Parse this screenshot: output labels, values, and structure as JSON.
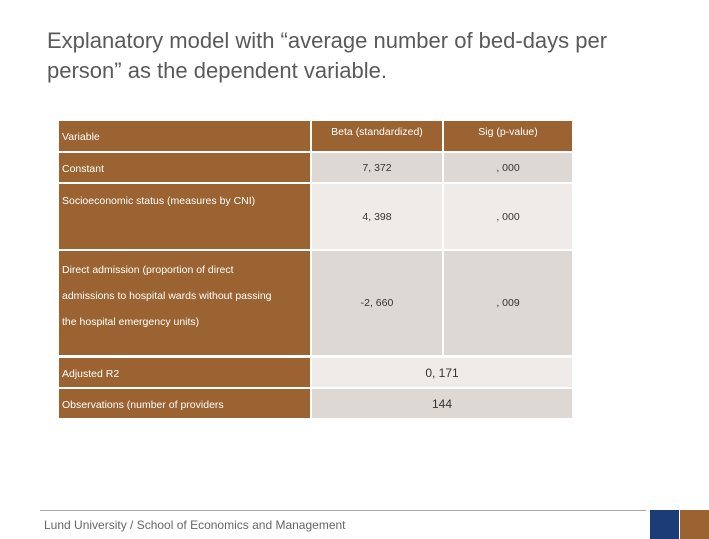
{
  "title": "Explanatory model with “average number of bed-days per person” as the dependent variable.",
  "table": {
    "headers": {
      "variable": "Variable",
      "beta": "Beta (standardized)",
      "sig": "Sig (p-value)"
    },
    "constant": {
      "label": "Constant",
      "beta": "7, 372",
      ",000": ",000",
      "sig": ", 000"
    },
    "socio": {
      "label": "Socioeconomic status (measures by CNI)",
      "beta": "4, 398",
      "sig": ", 000"
    },
    "direct": {
      "line1": "Direct admission (proportion of direct",
      "line2": "admissions to hospital wards without passing",
      "line3": "the hospital emergency units)",
      "beta": "-2, 660",
      "sig": ", 009"
    },
    "adjusted_r2": {
      "label": "Adjusted R2",
      "value": "0, 171"
    },
    "observations": {
      "label": "Observations (number of providers",
      "value": "144"
    }
  },
  "footer": {
    "text": "Lund University / School of Economics and Management"
  },
  "colors": {
    "brown": "#9a6331",
    "navy": "#1c3c78"
  }
}
